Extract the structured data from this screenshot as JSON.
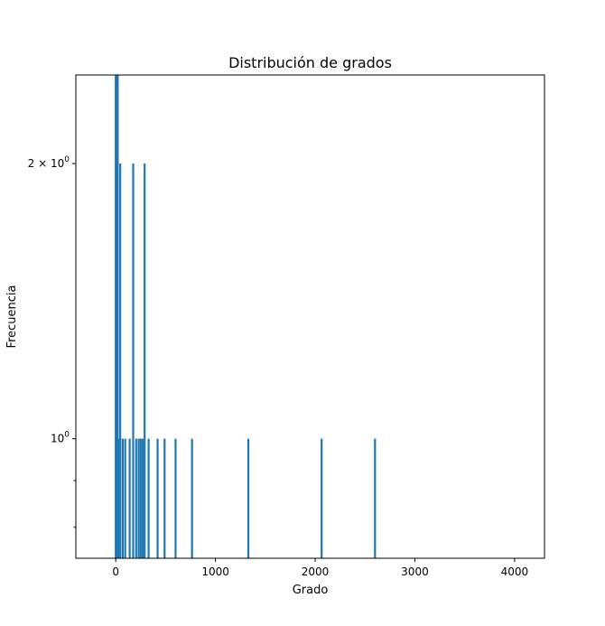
{
  "chart_data": {
    "type": "line",
    "title": "Distribución de grados",
    "xlabel": "Grado",
    "ylabel": "Frecuencia",
    "xscale": "linear",
    "yscale": "log",
    "xlim": [
      -400,
      4300
    ],
    "ylim": [
      0.74,
      2.5
    ],
    "grid": false,
    "legend": "none",
    "color": "#1f77b4",
    "x_ticks": [
      {
        "value": 0,
        "label": "0"
      },
      {
        "value": 1000,
        "label": "1000"
      },
      {
        "value": 2000,
        "label": "2000"
      },
      {
        "value": 3000,
        "label": "3000"
      },
      {
        "value": 4000,
        "label": "4000"
      }
    ],
    "y_major_ticks": [
      {
        "value": 1,
        "label_base": "10",
        "label_exp": "0",
        "label_prefix": ""
      },
      {
        "value": 2,
        "label_base": "10",
        "label_exp": "0",
        "label_prefix": "2 × "
      }
    ],
    "y_minor_ticks": [
      0.8,
      0.9
    ],
    "series": [
      {
        "x": [
          1,
          2,
          3,
          4,
          5,
          6,
          7,
          8,
          9,
          10,
          12,
          14,
          16,
          18,
          20,
          25,
          45,
          70,
          95,
          140,
          175,
          205,
          230,
          250,
          270,
          290,
          330,
          420,
          490,
          600,
          765,
          1330,
          2065,
          2600
        ],
        "y": [
          2.5,
          2.5,
          2.5,
          2.5,
          2.5,
          2.5,
          2.5,
          2.5,
          2.5,
          2.5,
          2.5,
          2.5,
          2.5,
          2.5,
          2.5,
          1,
          2,
          1,
          1,
          1,
          2,
          1,
          1,
          1,
          1,
          2,
          1,
          1,
          1,
          1,
          1,
          1,
          1,
          1
        ]
      }
    ]
  }
}
